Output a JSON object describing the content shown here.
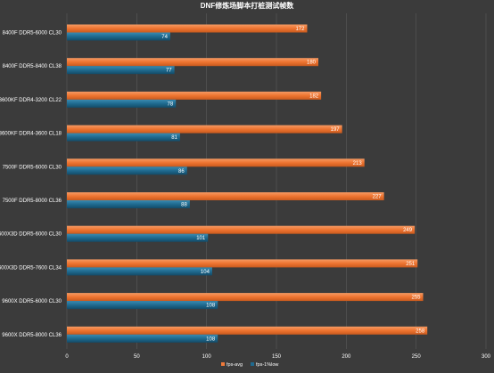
{
  "chart_data": {
    "type": "bar",
    "orientation": "horizontal",
    "title": "DNF修炼场脚本打桩测试帧数",
    "categories": [
      "8400F DDR5-6000 CL30",
      "8400F DDR5-8400 CL38",
      "13600KF DDR4-3200 CL22",
      "13600KF DDR4-3600 CL18",
      "7500F DDR5-6000 CL30",
      "7500F DDR5-8000 CL36",
      "7600X3D DDR5-6000 CL30",
      "7600X3D DDR5-7600 CL34",
      "9600X DDR5-6000 CL30",
      "9600X DDR5-8000 CL36"
    ],
    "series": [
      {
        "name": "fps-avg",
        "color": "#f07a3a",
        "values": [
          172,
          180,
          182,
          197,
          213,
          227,
          249,
          251,
          255,
          258
        ]
      },
      {
        "name": "fps-1%low",
        "color": "#1f6a8f",
        "values": [
          74,
          77,
          78,
          81,
          86,
          88,
          101,
          104,
          108,
          108
        ]
      }
    ],
    "xlim": [
      0,
      300
    ],
    "xticks": [
      0,
      50,
      100,
      150,
      200,
      250,
      300
    ],
    "grid": true,
    "legend_position": "bottom"
  }
}
